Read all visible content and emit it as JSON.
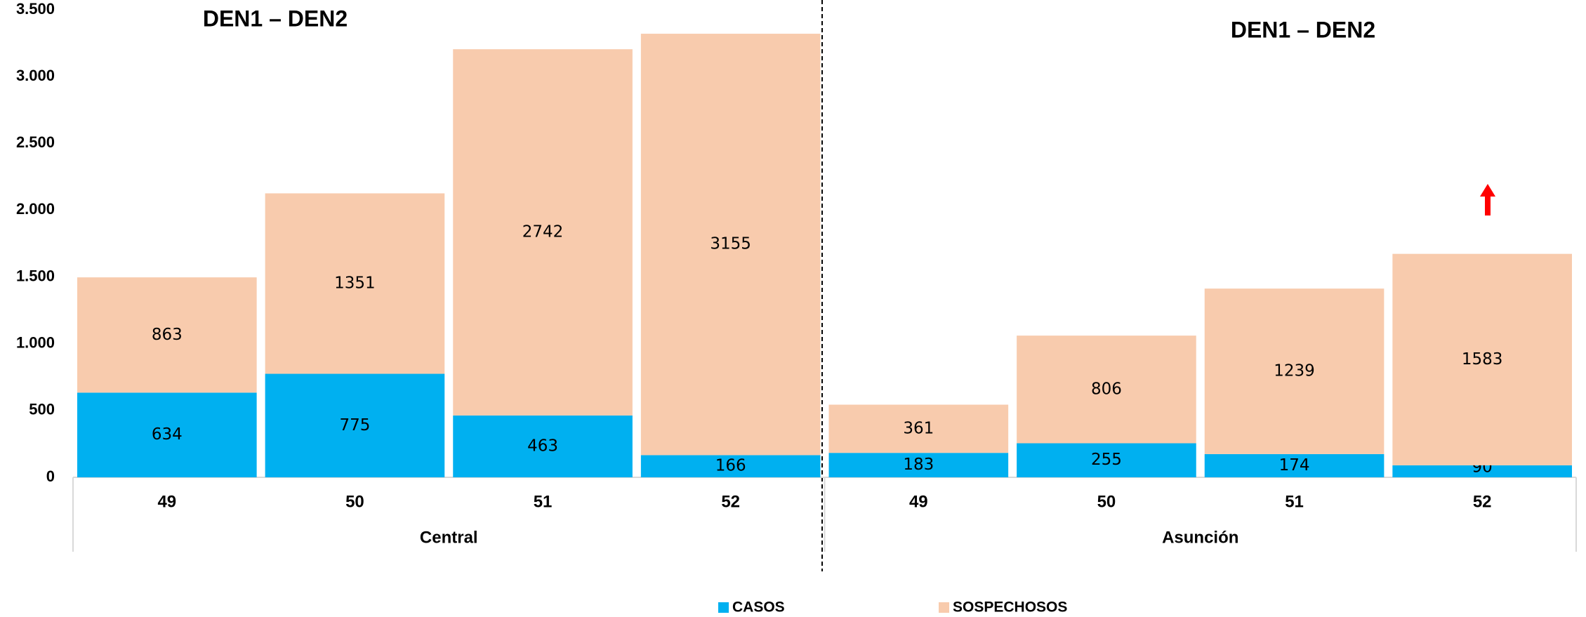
{
  "chart_data": {
    "type": "stacked_bar",
    "annotations": [
      "DEN1 – DEN2",
      "DEN1 – DEN2"
    ],
    "categories": [
      "49",
      "50",
      "51",
      "52",
      "49",
      "50",
      "51",
      "52"
    ],
    "groups": [
      "Central",
      "Asunción"
    ],
    "series": [
      {
        "name": "CASOS",
        "color": "#00b0f0",
        "values": [
          634,
          775,
          463,
          166,
          183,
          255,
          174,
          90
        ]
      },
      {
        "name": "SOSPECHOSOS",
        "color": "#f8cbad",
        "values": [
          863,
          1351,
          2742,
          3155,
          361,
          806,
          1239,
          1583
        ]
      }
    ],
    "ylim": [
      0,
      3500
    ],
    "yticks": [
      0,
      500,
      {
        "value": 1000,
        "label": "1.000"
      },
      {
        "value": 1500,
        "label": "1.500"
      },
      {
        "value": 2000,
        "label": "2.000"
      },
      {
        "value": 2500,
        "label": "2.500"
      },
      {
        "value": 3000,
        "label": "3.000"
      },
      {
        "value": 3500,
        "label": "3.500"
      }
    ],
    "legend": "bottom"
  }
}
